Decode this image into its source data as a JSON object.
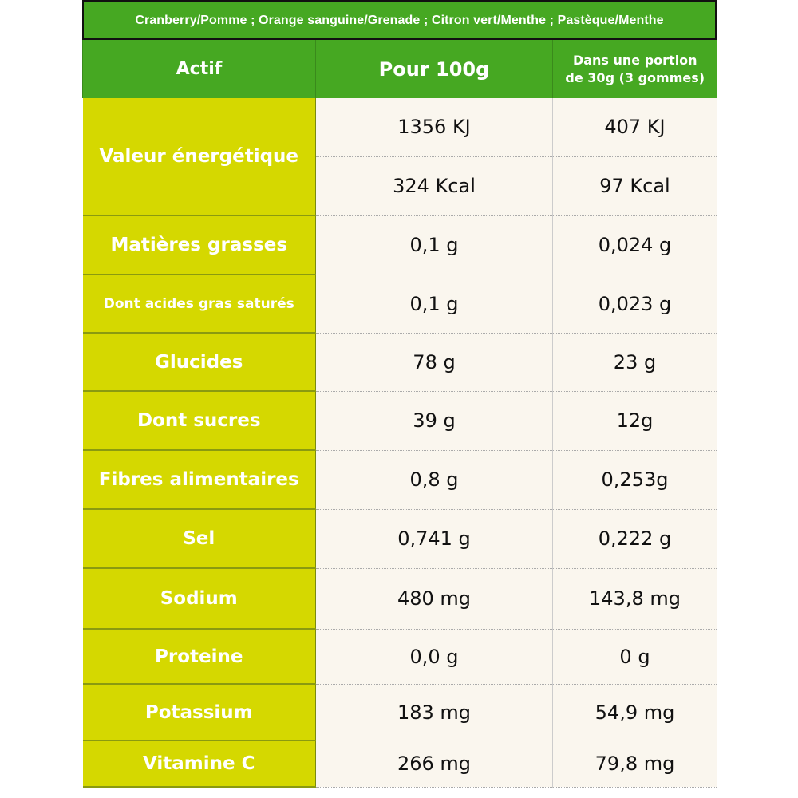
{
  "title": "Cranberry/Pomme ; Orange sanguine/Grenade ; Citron vert/Menthe ; Pastèque/Menthe",
  "headers": [
    "Actif",
    "Pour 100g",
    "Dans une portion",
    "de 30g (3 gommes)"
  ],
  "colors": {
    "header_green": "#46a822",
    "label_yellow_green": "#d5d800",
    "cell_bg": "#faf6ee"
  },
  "energy": {
    "label": "Valeur énergétique",
    "kj_100g": "1356 KJ",
    "kj_portion": "407 KJ",
    "kcal_100g": "324 Kcal",
    "kcal_portion": "97 Kcal"
  },
  "rows": [
    {
      "label": "Matières grasses",
      "per100": "0,1 g",
      "portion": "0,024 g"
    },
    {
      "label": "Dont acides gras saturés",
      "per100": "0,1 g",
      "portion": "0,023 g"
    },
    {
      "label": "Glucides",
      "per100": "78 g",
      "portion": "23 g"
    },
    {
      "label": "Dont sucres",
      "per100": "39 g",
      "portion": "12g"
    },
    {
      "label": "Fibres alimentaires",
      "per100": "0,8 g",
      "portion": "0,253g"
    },
    {
      "label": "Sel",
      "per100": "0,741 g",
      "portion": "0,222 g"
    },
    {
      "label": "Sodium",
      "per100": "480 mg",
      "portion": "143,8 mg"
    },
    {
      "label": "Proteine",
      "per100": "0,0 g",
      "portion": "0 g"
    },
    {
      "label": "Potassium",
      "per100": "183 mg",
      "portion": "54,9 mg"
    },
    {
      "label": "Vitamine C",
      "per100": "266 mg",
      "portion": "79,8 mg"
    }
  ]
}
